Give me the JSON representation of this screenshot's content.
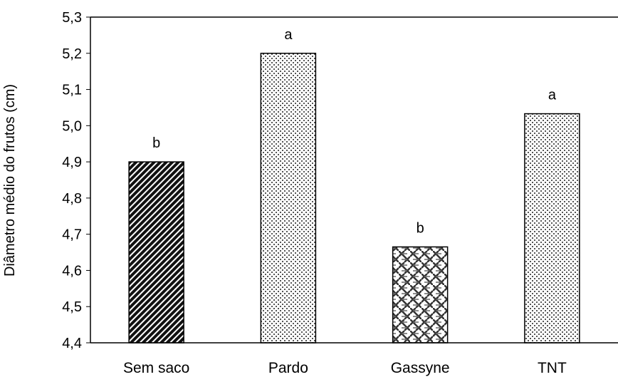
{
  "chart_data": {
    "type": "bar",
    "title": "",
    "xlabel": "",
    "ylabel": "Diâmetro médio do frutos (cm)",
    "ylim": [
      4.4,
      5.3
    ],
    "yticks": [
      "4,4",
      "4,5",
      "4,6",
      "4,7",
      "4,8",
      "4,9",
      "5,0",
      "5,1",
      "5,2",
      "5,3"
    ],
    "categories": [
      "Sem saco",
      "Pardo",
      "Gassyne",
      "TNT"
    ],
    "values": [
      4.9,
      5.2,
      4.665,
      5.033
    ],
    "data_labels": [
      "b",
      "a",
      "b",
      "a"
    ],
    "patterns": [
      "diagonal-stripes-dark",
      "dots",
      "weave",
      "dots"
    ],
    "grid": false,
    "legend": "none",
    "bar_edge_color": "#000000"
  }
}
